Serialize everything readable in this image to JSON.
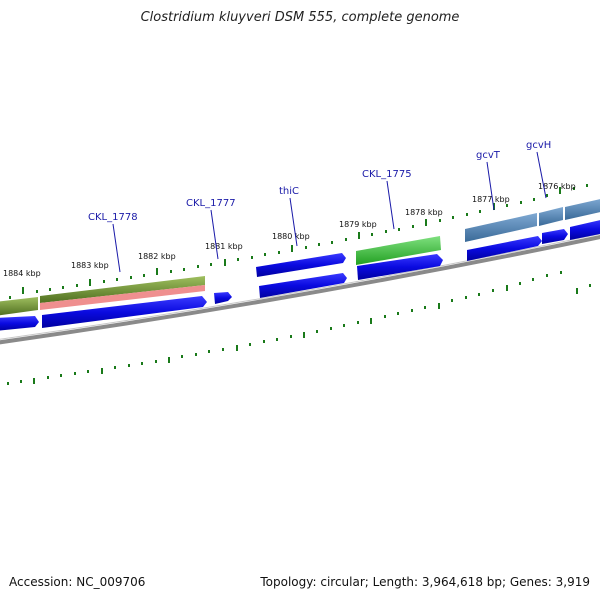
{
  "title": "Clostridium kluyveri DSM 555, complete genome",
  "footer": {
    "accession": "Accession: NC_009706",
    "topology": "Topology: circular; Length: 3,964,618 bp; Genes: 3,919"
  },
  "tick_labels": [
    "1884 kbp",
    "1883 kbp",
    "1882 kbp",
    "1881 kbp",
    "1880 kbp",
    "1879 kbp",
    "1878 kbp",
    "1877 kbp",
    "1876 kbp"
  ],
  "gene_labels": [
    "CKL_1778",
    "CKL_1777",
    "thiC",
    "CKL_1775",
    "gcvT",
    "gcvH"
  ],
  "colors": {
    "cds": "#0a0ae0",
    "olive": "#6b8a2e",
    "salmon": "#ef8f8f",
    "green": "#3ec43e",
    "steelblue": "#4a7fb0",
    "backbone": "#808080",
    "tick": "#1a7a1a",
    "label": "#1a1aa8"
  }
}
